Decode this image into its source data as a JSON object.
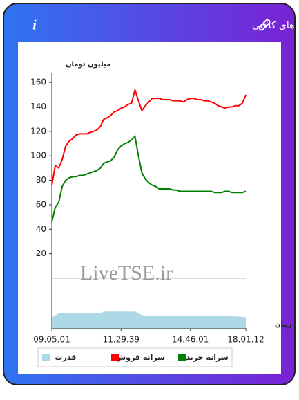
{
  "header": {
    "title": "سرانه ی خرید و فروش حقیقی در صندوق های کالایی",
    "info": "i"
  },
  "chart_data": {
    "type": "line",
    "y_label": "میلیون تومان",
    "x_label": "زمان",
    "watermark": "LiveTSE.ir",
    "categories": [
      "09.05.01",
      null,
      null,
      null,
      null,
      null,
      null,
      null,
      null,
      null,
      null,
      null,
      null,
      null,
      null,
      null,
      null,
      null,
      null,
      null,
      "11.29.39",
      null,
      null,
      null,
      null,
      null,
      null,
      null,
      null,
      null,
      null,
      null,
      null,
      null,
      null,
      null,
      null,
      null,
      null,
      null,
      "14.46.01",
      null,
      null,
      null,
      null,
      null,
      null,
      null,
      null,
      null,
      null,
      null,
      null,
      null,
      null,
      null,
      "18.01.12"
    ],
    "ylim": [
      0,
      168
    ],
    "yticks": [
      20,
      40,
      60,
      80,
      100,
      120,
      140,
      160
    ],
    "y2lim": [
      0,
      10
    ],
    "legend": "bottom",
    "series": [
      {
        "name": "سرانه خرید",
        "color": "#008000",
        "values": [
          46,
          58,
          62,
          75,
          80,
          82,
          83,
          83,
          84,
          84,
          85,
          86,
          87,
          88,
          90,
          94,
          95,
          96,
          99,
          105,
          108,
          110,
          111,
          113,
          116,
          100,
          86,
          81,
          78,
          76,
          75,
          73,
          73,
          73,
          73,
          72,
          72,
          71,
          71,
          71,
          71,
          71,
          71,
          71,
          71,
          71,
          71,
          70,
          70,
          70,
          71,
          71,
          70,
          70,
          70,
          70,
          71
        ]
      },
      {
        "name": "سرانه فروش",
        "color": "#ff0000",
        "values": [
          76,
          92,
          90,
          97,
          108,
          112,
          114,
          117,
          118,
          118,
          118,
          119,
          120,
          121,
          124,
          130,
          131,
          133,
          136,
          137,
          139,
          140,
          142,
          143,
          154,
          145,
          137,
          141,
          144,
          147,
          147,
          147,
          146,
          146,
          146,
          145,
          145,
          145,
          144,
          146,
          147,
          147,
          146,
          146,
          145,
          145,
          144,
          143,
          141,
          140,
          139,
          140,
          140,
          141,
          141,
          143,
          150
        ]
      },
      {
        "name": "قدرت",
        "color": "#add8e6",
        "axis": "y2",
        "type": "area",
        "values": [
          3,
          3.5,
          4,
          4,
          4,
          4,
          4,
          4,
          4,
          4,
          4,
          4,
          4,
          4,
          4,
          4.5,
          4.5,
          4.5,
          4.5,
          4.5,
          4.5,
          4.5,
          4.5,
          4.5,
          4.5,
          4,
          3.6,
          3.4,
          3.3,
          3.3,
          3.3,
          3.3,
          3.3,
          3.3,
          3.3,
          3.3,
          3.3,
          3.3,
          3.3,
          3.3,
          3.3,
          3.3,
          3.3,
          3.3,
          3.3,
          3.3,
          3.3,
          3.3,
          3.3,
          3.3,
          3.3,
          3.3,
          3.3,
          3.2,
          3.2,
          3.1,
          3
        ]
      }
    ]
  }
}
